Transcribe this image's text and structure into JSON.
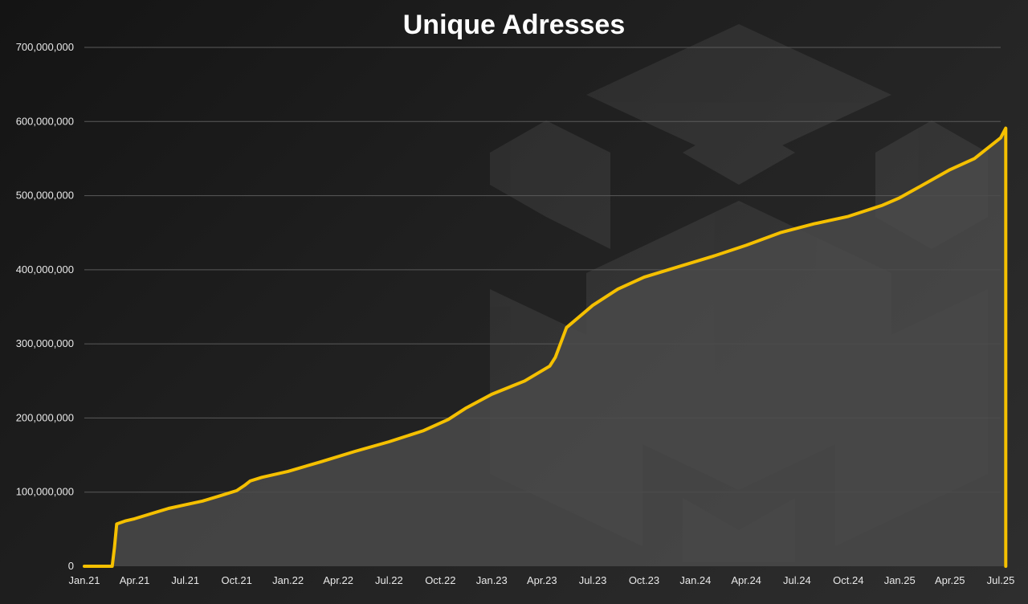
{
  "chart_data": {
    "type": "area",
    "title": "Unique Adresses",
    "xlabel": "",
    "ylabel": "",
    "ylim": [
      0,
      700000000
    ],
    "yticks": [
      0,
      100000000,
      200000000,
      300000000,
      400000000,
      500000000,
      600000000,
      700000000
    ],
    "ytick_labels": [
      "0",
      "100,000,000",
      "200,000,000",
      "300,000,000",
      "400,000,000",
      "500,000,000",
      "600,000,000",
      "700,000,000"
    ],
    "xtick_labels": [
      "Jan.21",
      "Apr.21",
      "Jul.21",
      "Oct.21",
      "Jan.22",
      "Apr.22",
      "Jul.22",
      "Oct.22",
      "Jan.23",
      "Apr.23",
      "Jul.23",
      "Oct.23",
      "Jan.24",
      "Apr.24",
      "Jul.24",
      "Oct.24",
      "Jan.25",
      "Apr.25",
      "Jul.25"
    ],
    "grid": true,
    "legend": "none",
    "colors": {
      "line": "#f5c000",
      "area": "#4a4a4a",
      "grid": "#5a5a5a",
      "text": "#e8e8e8",
      "title": "#ffffff"
    },
    "series": [
      {
        "x": [
          "2021-01-01",
          "2021-02-01",
          "2021-02-20",
          "2021-02-24",
          "2021-02-28",
          "2021-03-15",
          "2021-04-01",
          "2021-05-01",
          "2021-06-01",
          "2021-07-01",
          "2021-08-01",
          "2021-09-01",
          "2021-10-01",
          "2021-10-15",
          "2021-10-25",
          "2021-11-15",
          "2022-01-01",
          "2022-03-01",
          "2022-05-01",
          "2022-07-01",
          "2022-09-01",
          "2022-10-15",
          "2022-11-15",
          "2023-01-01",
          "2023-03-01",
          "2023-04-15",
          "2023-04-25",
          "2023-05-15",
          "2023-07-01",
          "2023-08-15",
          "2023-10-01",
          "2023-12-01",
          "2024-02-01",
          "2024-04-01",
          "2024-06-01",
          "2024-08-01",
          "2024-10-01",
          "2024-12-01",
          "2025-01-01",
          "2025-02-01",
          "2025-04-01",
          "2025-05-15",
          "2025-07-01",
          "2025-07-10"
        ],
        "y": [
          0,
          0,
          0,
          25000000,
          57000000,
          61000000,
          64000000,
          71000000,
          78000000,
          83000000,
          88000000,
          95000000,
          102000000,
          109000000,
          115000000,
          120000000,
          128000000,
          141000000,
          155000000,
          168000000,
          183000000,
          198000000,
          213000000,
          232000000,
          250000000,
          270000000,
          282000000,
          322000000,
          352000000,
          374000000,
          390000000,
          404000000,
          418000000,
          433000000,
          450000000,
          462000000,
          472000000,
          487000000,
          497000000,
          510000000,
          535000000,
          550000000,
          578000000,
          591000000
        ]
      }
    ]
  }
}
